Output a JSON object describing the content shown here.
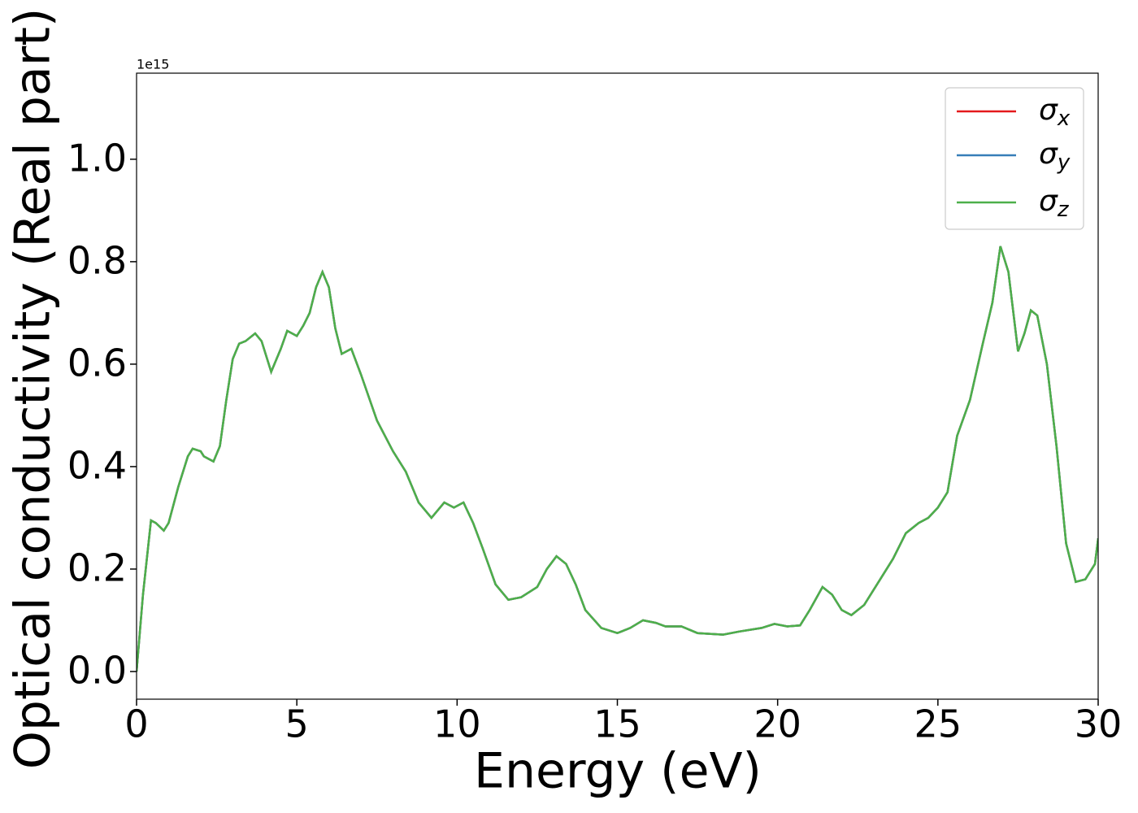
{
  "chart_data": {
    "type": "line",
    "xlabel": "Energy (eV)",
    "ylabel": "Optical conductivity (Real part)",
    "offset_label": "1e15",
    "xlim": [
      0,
      30
    ],
    "xticks": [
      0,
      5,
      10,
      15,
      20,
      25,
      30
    ],
    "ylim": [
      -0.054,
      1.168
    ],
    "yticks": [
      {
        "value": 0,
        "label": "0.0"
      },
      0.2,
      0.4,
      0.6,
      0.8,
      {
        "value": 1,
        "label": "1.0"
      }
    ],
    "legend": "upper right",
    "x": [
      0,
      0.2,
      0.45,
      0.6,
      0.85,
      1.0,
      1.3,
      1.6,
      1.75,
      2.0,
      2.1,
      2.4,
      2.6,
      2.8,
      3.0,
      3.2,
      3.4,
      3.7,
      3.9,
      4.2,
      4.5,
      4.7,
      5.0,
      5.2,
      5.4,
      5.6,
      5.8,
      6.0,
      6.2,
      6.4,
      6.7,
      7.0,
      7.5,
      8.0,
      8.4,
      8.8,
      9.2,
      9.6,
      9.9,
      10.2,
      10.5,
      10.8,
      11.2,
      11.6,
      12.0,
      12.5,
      12.8,
      13.1,
      13.4,
      13.7,
      14.0,
      14.5,
      15.0,
      15.4,
      15.8,
      16.2,
      16.5,
      17.0,
      17.5,
      18.3,
      18.8,
      19.5,
      19.9,
      20.3,
      20.7,
      21.0,
      21.4,
      21.7,
      22.0,
      22.3,
      22.7,
      23.2,
      23.6,
      24.0,
      24.4,
      24.7,
      25.0,
      25.3,
      25.6,
      26.0,
      26.4,
      26.7,
      26.95,
      27.2,
      27.5,
      27.7,
      27.9,
      28.1,
      28.4,
      28.7,
      29.0,
      29.3,
      29.6,
      29.9,
      30.0
    ],
    "series": [
      {
        "name": "σx",
        "color": "#e41a1c",
        "values": [
          0,
          0.15,
          0.295,
          0.29,
          0.275,
          0.29,
          0.36,
          0.42,
          0.435,
          0.43,
          0.42,
          0.41,
          0.44,
          0.53,
          0.61,
          0.64,
          0.645,
          0.66,
          0.645,
          0.585,
          0.63,
          0.665,
          0.655,
          0.675,
          0.7,
          0.75,
          0.78,
          0.75,
          0.67,
          0.62,
          0.63,
          0.58,
          0.49,
          0.43,
          0.39,
          0.33,
          0.3,
          0.33,
          0.32,
          0.33,
          0.29,
          0.24,
          0.17,
          0.14,
          0.145,
          0.165,
          0.2,
          0.225,
          0.21,
          0.17,
          0.12,
          0.085,
          0.075,
          0.085,
          0.1,
          0.095,
          0.088,
          0.088,
          0.075,
          0.072,
          0.078,
          0.085,
          0.093,
          0.088,
          0.09,
          0.12,
          0.165,
          0.15,
          0.12,
          0.11,
          0.13,
          0.18,
          0.22,
          0.27,
          0.29,
          0.3,
          0.32,
          0.35,
          0.46,
          0.53,
          0.64,
          0.72,
          0.83,
          0.78,
          0.625,
          0.66,
          0.705,
          0.695,
          0.6,
          0.44,
          0.25,
          0.175,
          0.18,
          0.21,
          0.26
        ]
      },
      {
        "name": "σy",
        "color": "#377eb8",
        "values": [
          0,
          0.15,
          0.295,
          0.29,
          0.275,
          0.29,
          0.36,
          0.42,
          0.435,
          0.43,
          0.42,
          0.41,
          0.44,
          0.53,
          0.61,
          0.64,
          0.645,
          0.66,
          0.645,
          0.585,
          0.63,
          0.665,
          0.655,
          0.675,
          0.7,
          0.75,
          0.78,
          0.75,
          0.67,
          0.62,
          0.63,
          0.58,
          0.49,
          0.43,
          0.39,
          0.33,
          0.3,
          0.33,
          0.32,
          0.33,
          0.29,
          0.24,
          0.17,
          0.14,
          0.145,
          0.165,
          0.2,
          0.225,
          0.21,
          0.17,
          0.12,
          0.085,
          0.075,
          0.085,
          0.1,
          0.095,
          0.088,
          0.088,
          0.075,
          0.072,
          0.078,
          0.085,
          0.093,
          0.088,
          0.09,
          0.12,
          0.165,
          0.15,
          0.12,
          0.11,
          0.13,
          0.18,
          0.22,
          0.27,
          0.29,
          0.3,
          0.32,
          0.35,
          0.46,
          0.53,
          0.64,
          0.72,
          0.83,
          0.78,
          0.625,
          0.66,
          0.705,
          0.695,
          0.6,
          0.44,
          0.25,
          0.175,
          0.18,
          0.21,
          0.26
        ]
      },
      {
        "name": "σz",
        "color": "#4daf4a",
        "values": [
          0,
          0.15,
          0.295,
          0.29,
          0.275,
          0.29,
          0.36,
          0.42,
          0.435,
          0.43,
          0.42,
          0.41,
          0.44,
          0.53,
          0.61,
          0.64,
          0.645,
          0.66,
          0.645,
          0.585,
          0.63,
          0.665,
          0.655,
          0.675,
          0.7,
          0.75,
          0.78,
          0.75,
          0.67,
          0.62,
          0.63,
          0.58,
          0.49,
          0.43,
          0.39,
          0.33,
          0.3,
          0.33,
          0.32,
          0.33,
          0.29,
          0.24,
          0.17,
          0.14,
          0.145,
          0.165,
          0.2,
          0.225,
          0.21,
          0.17,
          0.12,
          0.085,
          0.075,
          0.085,
          0.1,
          0.095,
          0.088,
          0.088,
          0.075,
          0.072,
          0.078,
          0.085,
          0.093,
          0.088,
          0.09,
          0.12,
          0.165,
          0.15,
          0.12,
          0.11,
          0.13,
          0.18,
          0.22,
          0.27,
          0.29,
          0.3,
          0.32,
          0.35,
          0.46,
          0.53,
          0.64,
          0.72,
          0.83,
          0.78,
          0.625,
          0.66,
          0.705,
          0.695,
          0.6,
          0.44,
          0.25,
          0.175,
          0.18,
          0.21,
          0.26
        ]
      }
    ]
  }
}
